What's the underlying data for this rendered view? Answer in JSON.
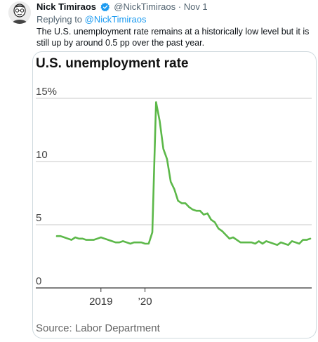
{
  "tweet": {
    "author_name": "Nick Timiraos",
    "handle": "@NickTimiraos",
    "separator": "·",
    "date": "Nov 1",
    "replying_prefix": "Replying to",
    "replying_to": "@NickTimiraos",
    "text": "The U.S. unemployment rate remains at a historically low level but it is still up by around 0.5 pp over the past year."
  },
  "colors": {
    "line": "#5cb849",
    "grid": "#c9c9c9",
    "axis": "#333333",
    "link": "#1d9bf0"
  },
  "icons": {
    "avatar": "avatar-icon",
    "verified": "verified-badge-icon"
  },
  "chart_data": {
    "type": "line",
    "title": "U.S. unemployment rate",
    "source": "Source: Labor Department",
    "y_ticks": [
      "15%",
      "10",
      "5",
      "0"
    ],
    "y_tick_values": [
      15,
      10,
      5,
      0
    ],
    "x_ticks": [
      "2019",
      "’20"
    ],
    "x_tick_values": [
      2019.0,
      2020.0
    ],
    "ylim": [
      0,
      15
    ],
    "xlim": [
      2018.0,
      2023.83
    ],
    "grid": true,
    "series": [
      {
        "x": [
          2018.0,
          2018.083,
          2018.167,
          2018.25,
          2018.333,
          2018.417,
          2018.5,
          2018.583,
          2018.667,
          2018.75,
          2018.833,
          2018.917,
          2019.0,
          2019.083,
          2019.167,
          2019.25,
          2019.333,
          2019.417,
          2019.5,
          2019.583,
          2019.667,
          2019.75,
          2019.833,
          2019.917,
          2020.0,
          2020.083,
          2020.167,
          2020.25,
          2020.333,
          2020.417,
          2020.5,
          2020.583,
          2020.667,
          2020.75,
          2020.833,
          2020.917,
          2021.0,
          2021.083,
          2021.167,
          2021.25,
          2021.333,
          2021.417,
          2021.5,
          2021.583,
          2021.667,
          2021.75,
          2021.833,
          2021.917,
          2022.0,
          2022.083,
          2022.167,
          2022.25,
          2022.333,
          2022.417,
          2022.5,
          2022.583,
          2022.667,
          2022.75,
          2022.833,
          2022.917,
          2023.0,
          2023.083,
          2023.167,
          2023.25,
          2023.333,
          2023.417,
          2023.5,
          2023.583,
          2023.667,
          2023.75
        ],
        "values": [
          4.1,
          4.1,
          4.0,
          3.9,
          3.8,
          4.0,
          3.9,
          3.9,
          3.8,
          3.8,
          3.8,
          3.9,
          4.0,
          3.9,
          3.8,
          3.7,
          3.6,
          3.6,
          3.7,
          3.6,
          3.5,
          3.6,
          3.6,
          3.6,
          3.5,
          3.5,
          4.4,
          14.7,
          13.2,
          11.0,
          10.2,
          8.4,
          7.8,
          6.9,
          6.7,
          6.7,
          6.4,
          6.2,
          6.1,
          6.1,
          5.8,
          5.9,
          5.4,
          5.2,
          4.7,
          4.5,
          4.2,
          3.9,
          4.0,
          3.8,
          3.6,
          3.6,
          3.6,
          3.6,
          3.5,
          3.7,
          3.5,
          3.7,
          3.6,
          3.5,
          3.4,
          3.6,
          3.5,
          3.4,
          3.7,
          3.6,
          3.5,
          3.8,
          3.8,
          3.9
        ]
      }
    ]
  }
}
